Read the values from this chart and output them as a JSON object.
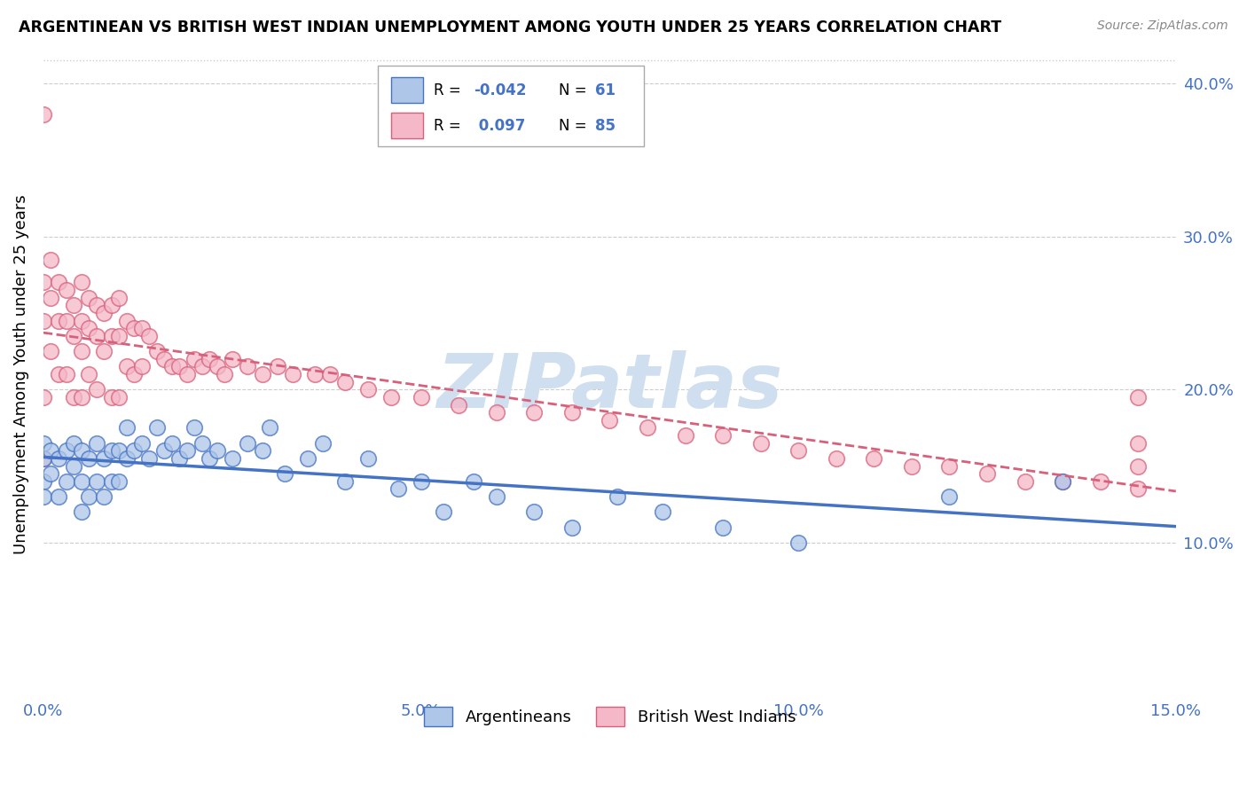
{
  "title": "ARGENTINEAN VS BRITISH WEST INDIAN UNEMPLOYMENT AMONG YOUTH UNDER 25 YEARS CORRELATION CHART",
  "source": "Source: ZipAtlas.com",
  "ylabel": "Unemployment Among Youth under 25 years",
  "xmin": 0.0,
  "xmax": 0.15,
  "ymin": 0.0,
  "ymax": 0.42,
  "xtick_vals": [
    0.0,
    0.05,
    0.1,
    0.15
  ],
  "xtick_labels": [
    "0.0%",
    "5.0%",
    "10.0%",
    "15.0%"
  ],
  "ytick_vals": [
    0.0,
    0.1,
    0.2,
    0.3,
    0.4
  ],
  "ytick_labels": [
    "",
    "10.0%",
    "20.0%",
    "30.0%",
    "40.0%"
  ],
  "argentinean_R": "-0.042",
  "argentinean_N": "61",
  "british_R": "0.097",
  "british_N": "85",
  "blue_fill": "#aec6e8",
  "blue_edge": "#4472c4",
  "pink_fill": "#f4b8c8",
  "pink_edge": "#d9607a",
  "blue_line": "#4472c4",
  "pink_line": "#d9607a",
  "watermark_color": "#d0dff0",
  "watermark_text": "ZIPatlas",
  "legend_labels": [
    "Argentineans",
    "British West Indians"
  ],
  "arg_x": [
    0.0,
    0.0,
    0.0,
    0.0,
    0.001,
    0.001,
    0.002,
    0.002,
    0.003,
    0.003,
    0.004,
    0.004,
    0.005,
    0.005,
    0.005,
    0.006,
    0.006,
    0.007,
    0.007,
    0.008,
    0.008,
    0.009,
    0.009,
    0.01,
    0.01,
    0.011,
    0.011,
    0.012,
    0.013,
    0.014,
    0.015,
    0.016,
    0.017,
    0.018,
    0.019,
    0.02,
    0.021,
    0.022,
    0.023,
    0.025,
    0.027,
    0.029,
    0.03,
    0.032,
    0.035,
    0.037,
    0.04,
    0.043,
    0.047,
    0.05,
    0.053,
    0.057,
    0.06,
    0.065,
    0.07,
    0.076,
    0.082,
    0.09,
    0.1,
    0.12,
    0.135
  ],
  "arg_y": [
    0.14,
    0.155,
    0.165,
    0.13,
    0.145,
    0.16,
    0.13,
    0.155,
    0.14,
    0.16,
    0.15,
    0.165,
    0.12,
    0.14,
    0.16,
    0.13,
    0.155,
    0.14,
    0.165,
    0.13,
    0.155,
    0.14,
    0.16,
    0.14,
    0.16,
    0.155,
    0.175,
    0.16,
    0.165,
    0.155,
    0.175,
    0.16,
    0.165,
    0.155,
    0.16,
    0.175,
    0.165,
    0.155,
    0.16,
    0.155,
    0.165,
    0.16,
    0.175,
    0.145,
    0.155,
    0.165,
    0.14,
    0.155,
    0.135,
    0.14,
    0.12,
    0.14,
    0.13,
    0.12,
    0.11,
    0.13,
    0.12,
    0.11,
    0.1,
    0.13,
    0.14
  ],
  "bwi_x": [
    0.0,
    0.0,
    0.0,
    0.0,
    0.0,
    0.001,
    0.001,
    0.001,
    0.002,
    0.002,
    0.002,
    0.003,
    0.003,
    0.003,
    0.004,
    0.004,
    0.004,
    0.005,
    0.005,
    0.005,
    0.005,
    0.006,
    0.006,
    0.006,
    0.007,
    0.007,
    0.007,
    0.008,
    0.008,
    0.009,
    0.009,
    0.009,
    0.01,
    0.01,
    0.01,
    0.011,
    0.011,
    0.012,
    0.012,
    0.013,
    0.013,
    0.014,
    0.015,
    0.016,
    0.017,
    0.018,
    0.019,
    0.02,
    0.021,
    0.022,
    0.023,
    0.024,
    0.025,
    0.027,
    0.029,
    0.031,
    0.033,
    0.036,
    0.038,
    0.04,
    0.043,
    0.046,
    0.05,
    0.055,
    0.06,
    0.065,
    0.07,
    0.075,
    0.08,
    0.085,
    0.09,
    0.095,
    0.1,
    0.105,
    0.11,
    0.115,
    0.12,
    0.125,
    0.13,
    0.135,
    0.14,
    0.145,
    0.145,
    0.145,
    0.145
  ],
  "bwi_y": [
    0.38,
    0.27,
    0.245,
    0.195,
    0.155,
    0.285,
    0.26,
    0.225,
    0.27,
    0.245,
    0.21,
    0.265,
    0.245,
    0.21,
    0.255,
    0.235,
    0.195,
    0.27,
    0.245,
    0.225,
    0.195,
    0.26,
    0.24,
    0.21,
    0.255,
    0.235,
    0.2,
    0.25,
    0.225,
    0.255,
    0.235,
    0.195,
    0.26,
    0.235,
    0.195,
    0.245,
    0.215,
    0.24,
    0.21,
    0.24,
    0.215,
    0.235,
    0.225,
    0.22,
    0.215,
    0.215,
    0.21,
    0.22,
    0.215,
    0.22,
    0.215,
    0.21,
    0.22,
    0.215,
    0.21,
    0.215,
    0.21,
    0.21,
    0.21,
    0.205,
    0.2,
    0.195,
    0.195,
    0.19,
    0.185,
    0.185,
    0.185,
    0.18,
    0.175,
    0.17,
    0.17,
    0.165,
    0.16,
    0.155,
    0.155,
    0.15,
    0.15,
    0.145,
    0.14,
    0.14,
    0.14,
    0.195,
    0.165,
    0.15,
    0.135
  ]
}
